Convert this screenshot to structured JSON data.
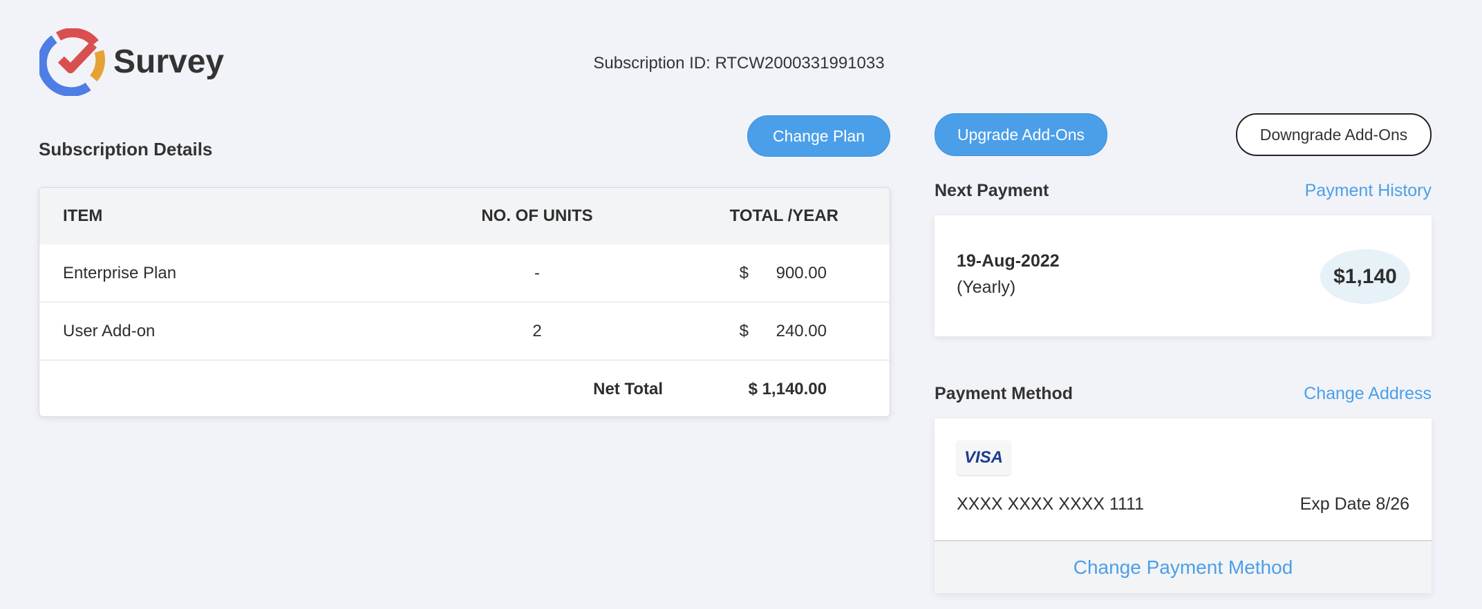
{
  "header": {
    "brand": "Survey",
    "subscription_id": "Subscription ID: RTCW2000331991033"
  },
  "subscription": {
    "title": "Subscription Details",
    "change_plan": "Change Plan",
    "columns": [
      "ITEM",
      "NO. OF UNITS",
      "TOTAL /YEAR"
    ],
    "rows": [
      {
        "item": "Enterprise Plan",
        "units": "-",
        "currency": "$",
        "total": "900.00"
      },
      {
        "item": "User Add-on",
        "units": "2",
        "currency": "$",
        "total": "240.00"
      }
    ],
    "net_total_label": "Net Total",
    "net_total": "$ 1,140.00"
  },
  "addons": {
    "upgrade": "Upgrade Add-Ons",
    "downgrade": "Downgrade Add-Ons"
  },
  "next_payment": {
    "label": "Next Payment",
    "history_link": "Payment History",
    "date": "19-Aug-2022",
    "frequency": "(Yearly)",
    "amount": "$1,140"
  },
  "payment_method": {
    "label": "Payment Method",
    "change_address": "Change Address",
    "card_brand": "VISA",
    "card_number": "XXXX XXXX XXXX 1111",
    "expiry": "Exp Date 8/26",
    "change_method": "Change Payment Method"
  },
  "colors": {
    "accent": "#4b9fe8",
    "background": "#f2f3f8",
    "amount_pill": "#e6f1f8"
  }
}
